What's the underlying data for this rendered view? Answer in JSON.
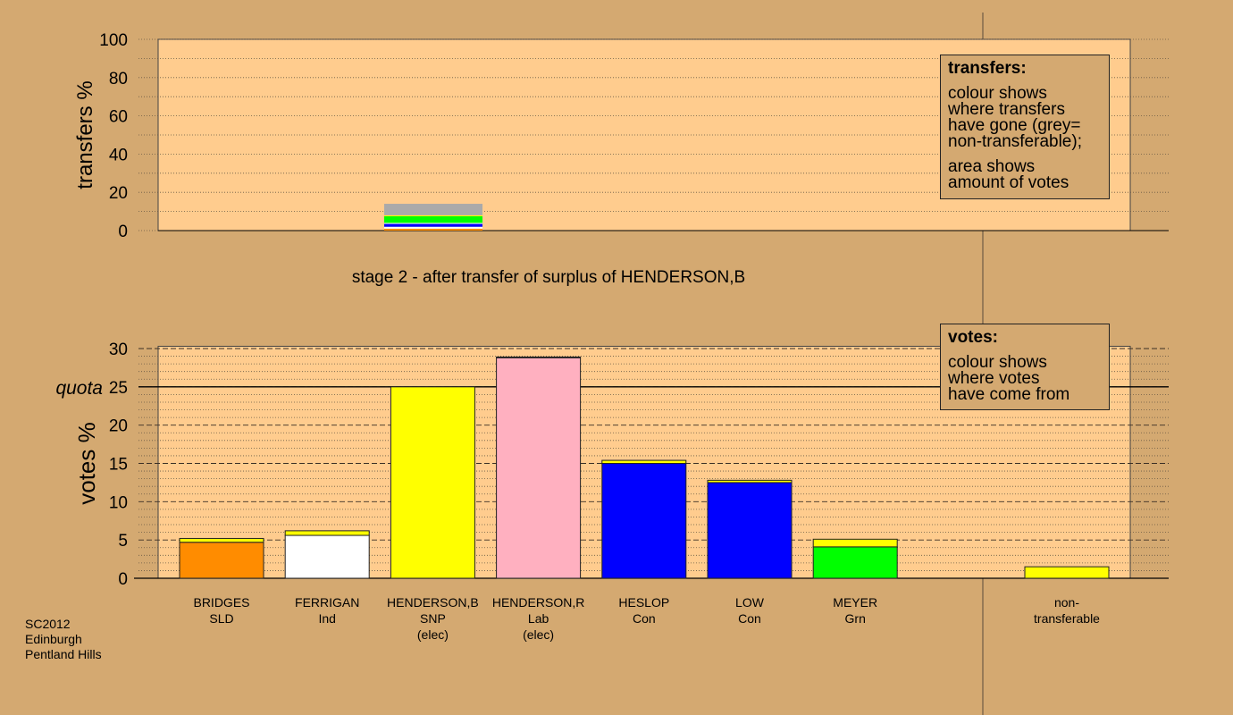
{
  "chart_data": [
    {
      "type": "bar",
      "stacked": true,
      "ylabel": "transfers %",
      "ylim": [
        0,
        100
      ],
      "yticks": [
        0,
        20,
        40,
        60,
        80,
        100
      ],
      "grid": true,
      "x_category": "HENDERSON,B",
      "segments": [
        {
          "color": "#ff8c00",
          "value": 1.0
        },
        {
          "color": "#ffffff",
          "value": 1.0
        },
        {
          "color": "#0000ff",
          "value": 1.5
        },
        {
          "color": "#ffffff",
          "value": 0.5
        },
        {
          "color": "#00ff00",
          "value": 3.5
        },
        {
          "color": "#ffff00",
          "value": 0.5
        },
        {
          "color": "#aaaaaa",
          "value": 6.0
        }
      ],
      "legend": {
        "title": "transfers:",
        "lines_1": [
          "colour shows",
          "where transfers",
          "have gone (grey=",
          "non-transferable);"
        ],
        "lines_2": [
          "area shows",
          "amount of votes"
        ]
      }
    },
    {
      "type": "bar",
      "stacked": true,
      "ylabel": "votes %",
      "ylim": [
        0,
        30
      ],
      "yticks": [
        0,
        5,
        10,
        15,
        20,
        25,
        30
      ],
      "grid": true,
      "quota": {
        "label": "quota",
        "value": 25
      },
      "categories": [
        {
          "name": "BRIDGES",
          "party": "SLD",
          "elected": "",
          "base_color": "#ff8c00",
          "base": 4.7,
          "transfer": 0.5
        },
        {
          "name": "FERRIGAN",
          "party": "Ind",
          "elected": "",
          "base_color": "#ffffff",
          "base": 5.6,
          "transfer": 0.6
        },
        {
          "name": "HENDERSON,B",
          "party": "SNP",
          "elected": "(elec)",
          "base_color": "#ffff00",
          "base": 25.0,
          "transfer": 0
        },
        {
          "name": "HENDERSON,R",
          "party": "Lab",
          "elected": "(elec)",
          "base_color": "#ffb0c0",
          "base": 28.8,
          "transfer": 0.1
        },
        {
          "name": "HESLOP",
          "party": "Con",
          "elected": "",
          "base_color": "#0000ff",
          "base": 15.0,
          "transfer": 0.4
        },
        {
          "name": "LOW",
          "party": "Con",
          "elected": "",
          "base_color": "#0000ff",
          "base": 12.5,
          "transfer": 0.3
        },
        {
          "name": "MEYER",
          "party": "Grn",
          "elected": "",
          "base_color": "#00ff00",
          "base": 4.1,
          "transfer": 1.0
        }
      ],
      "nontransferable": {
        "line1": "non-",
        "line2": "transferable",
        "value": 1.5,
        "color": "#ffff00"
      },
      "legend": {
        "title": "votes:",
        "lines": [
          "colour shows",
          "where votes",
          "have come from"
        ]
      }
    }
  ],
  "stage_title": "stage 2 - after transfer of surplus of HENDERSON,B",
  "footer": {
    "line1": "SC2012",
    "line2": "Edinburgh",
    "line3": "Pentland Hills"
  },
  "colors": {
    "background": "#d4a971",
    "plot_fill": "#ffcc8e",
    "transfer_color": "#ffff00"
  }
}
